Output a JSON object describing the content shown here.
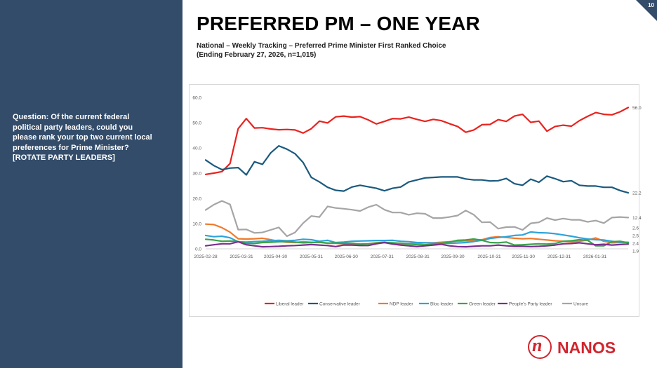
{
  "page": {
    "number": "10",
    "title": "PREFERRED PM – ONE YEAR",
    "subtitle_line1": "National – Weekly Tracking – Preferred Prime Minister First Ranked Choice",
    "subtitle_line2": "(Ending February 27, 2026, n=1,015)",
    "question": "Question: Of the current federal political party leaders, could you please rank your top two current local preferences for Prime Minister? [ROTATE PARTY LEADERS]",
    "brand": "NANOS",
    "brand_mark": "n"
  },
  "chart_data": {
    "type": "line",
    "title": "",
    "xlabel": "",
    "ylabel": "",
    "ylim": [
      0,
      60
    ],
    "yticks": [
      0.0,
      10.0,
      20.0,
      30.0,
      40.0,
      50.0,
      60.0
    ],
    "ytick_labels": [
      "0.0",
      "10.0",
      "20.0",
      "30.0",
      "40.0",
      "50.0",
      "60.0"
    ],
    "x_tick_labels": [
      "2025-02-28",
      "2025-03-31",
      "2025-04-30",
      "2025-05-31",
      "2025-06-30",
      "2025-07-31",
      "2025-08-31",
      "2025-09-30",
      "2025-10-31",
      "2025-11-30",
      "2025-12-31",
      "2026-01-31"
    ],
    "x_tick_positions": [
      0,
      4.4,
      8.6,
      13.0,
      17.3,
      21.7,
      26.1,
      30.4,
      34.9,
      39.1,
      43.5,
      47.9
    ],
    "grid": false,
    "legend_position": "bottom",
    "end_labels": [
      "56.0",
      "22.2",
      "12.4",
      "2.6",
      "2.5",
      "2.4",
      "1.9"
    ],
    "series": [
      {
        "name": "Liberal leader",
        "color": "#e8231f",
        "values": [
          29.5,
          30.0,
          30.6,
          33.8,
          47.6,
          51.6,
          47.9,
          48.0,
          47.5,
          47.2,
          47.3,
          47.1,
          45.9,
          47.6,
          50.6,
          49.9,
          52.3,
          52.6,
          52.2,
          52.4,
          51.1,
          49.5,
          50.5,
          51.6,
          51.5,
          52.2,
          51.3,
          50.5,
          51.3,
          50.8,
          49.6,
          48.5,
          46.2,
          47.1,
          49.2,
          49.3,
          51.2,
          50.5,
          52.6,
          53.3,
          50.1,
          50.6,
          46.6,
          48.5,
          49.0,
          48.6,
          50.8,
          52.5,
          54.0,
          53.3,
          53.1,
          54.3,
          56.0
        ]
      },
      {
        "name": "Conservative leader",
        "color": "#1a5a7e",
        "values": [
          35.2,
          33.0,
          31.4,
          32.0,
          32.2,
          29.3,
          34.5,
          33.5,
          38.0,
          40.8,
          39.5,
          37.7,
          34.2,
          28.3,
          26.5,
          24.4,
          23.2,
          22.9,
          24.5,
          25.2,
          24.6,
          24.0,
          23.0,
          24.0,
          24.5,
          26.5,
          27.3,
          28.1,
          28.3,
          28.5,
          28.5,
          28.5,
          27.7,
          27.3,
          27.3,
          26.9,
          27.0,
          27.9,
          25.8,
          25.2,
          27.6,
          26.4,
          28.8,
          27.8,
          26.6,
          27.0,
          25.2,
          24.9,
          24.9,
          24.4,
          24.4,
          23.1,
          22.2
        ]
      },
      {
        "name": "NDP leader",
        "color": "#f07a2c",
        "values": [
          9.8,
          9.6,
          8.4,
          6.6,
          4.0,
          3.9,
          4.0,
          4.2,
          3.6,
          3.0,
          2.6,
          2.5,
          2.8,
          2.6,
          2.6,
          2.2,
          2.2,
          2.0,
          2.0,
          1.8,
          2.0,
          2.4,
          2.6,
          2.2,
          2.0,
          2.0,
          2.2,
          2.4,
          2.4,
          2.6,
          2.8,
          3.0,
          3.2,
          3.4,
          3.6,
          4.5,
          4.8,
          4.5,
          4.2,
          4.0,
          4.1,
          3.8,
          3.5,
          3.2,
          3.0,
          2.8,
          3.0,
          3.5,
          4.3,
          3.0,
          2.4,
          2.5,
          2.5
        ]
      },
      {
        "name": "Bloc leader",
        "color": "#2ea3d8",
        "values": [
          5.3,
          4.8,
          5.0,
          4.4,
          2.8,
          2.7,
          2.9,
          3.0,
          3.2,
          3.4,
          3.2,
          3.4,
          3.8,
          3.6,
          3.0,
          3.4,
          2.5,
          2.7,
          3.0,
          3.1,
          3.2,
          3.3,
          3.3,
          3.4,
          3.0,
          2.8,
          2.5,
          2.4,
          2.3,
          2.2,
          2.2,
          2.3,
          2.5,
          2.9,
          3.4,
          4.1,
          4.5,
          4.8,
          5.3,
          5.5,
          6.7,
          6.4,
          6.3,
          6.0,
          5.5,
          5.0,
          4.4,
          3.9,
          3.6,
          3.5,
          3.0,
          2.6,
          2.6
        ]
      },
      {
        "name": "Green leader",
        "color": "#3aa34a",
        "values": [
          3.8,
          3.5,
          3.0,
          3.1,
          2.9,
          2.2,
          2.1,
          2.5,
          2.6,
          2.8,
          2.9,
          2.7,
          2.4,
          2.5,
          2.6,
          2.3,
          2.3,
          2.2,
          2.2,
          1.9,
          2.0,
          2.3,
          2.5,
          2.4,
          2.2,
          1.9,
          1.6,
          1.6,
          1.8,
          2.2,
          2.7,
          3.4,
          3.5,
          3.9,
          3.4,
          2.5,
          2.4,
          2.7,
          1.5,
          1.6,
          1.8,
          2.0,
          1.9,
          2.1,
          3.0,
          3.2,
          3.6,
          3.4,
          1.2,
          1.2,
          2.8,
          3.0,
          2.4
        ]
      },
      {
        "name": "People's Party leader",
        "color": "#7a2e8e",
        "values": [
          1.2,
          1.6,
          2.0,
          2.0,
          2.8,
          1.6,
          1.2,
          0.8,
          0.9,
          1.0,
          1.2,
          1.3,
          1.5,
          1.7,
          1.5,
          1.3,
          0.9,
          1.5,
          1.5,
          1.3,
          1.3,
          2.0,
          2.5,
          1.9,
          1.5,
          1.2,
          0.9,
          1.2,
          1.5,
          1.8,
          1.2,
          0.9,
          0.8,
          1.0,
          1.2,
          1.2,
          1.5,
          1.2,
          1.0,
          1.0,
          0.9,
          1.0,
          1.2,
          1.5,
          2.0,
          2.1,
          2.4,
          2.0,
          1.6,
          1.8,
          1.5,
          1.7,
          1.9
        ]
      },
      {
        "name": "Unsure",
        "color": "#a5a5a5",
        "values": [
          15.4,
          17.5,
          19.0,
          17.6,
          7.6,
          7.7,
          6.3,
          6.5,
          7.5,
          8.5,
          5.0,
          6.5,
          10.2,
          13.0,
          12.6,
          16.8,
          16.2,
          15.9,
          15.5,
          15.0,
          16.5,
          17.5,
          15.5,
          14.4,
          14.4,
          13.5,
          14.1,
          13.9,
          12.2,
          12.2,
          12.6,
          13.2,
          15.2,
          13.5,
          10.5,
          10.6,
          8.0,
          8.6,
          8.7,
          7.5,
          10.1,
          10.5,
          12.2,
          11.4,
          12.0,
          11.5,
          11.5,
          10.7,
          11.2,
          10.2,
          12.4,
          12.6,
          12.4
        ]
      }
    ]
  }
}
